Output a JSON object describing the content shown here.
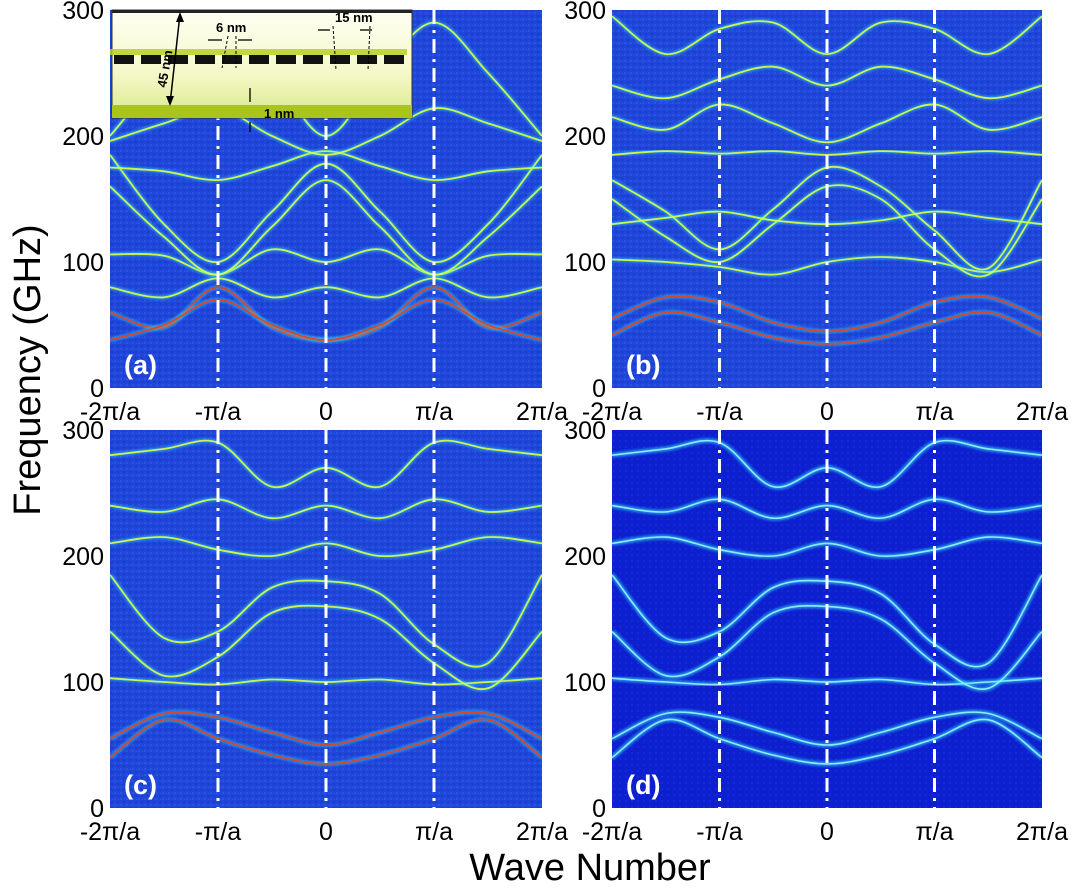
{
  "figure": {
    "xlabel": "Wave Number",
    "ylabel": "Frequency (GHz)"
  },
  "colors": {
    "background": "#1e44d8",
    "band_core": "#e0ff40",
    "band_glow": "#35e6ff",
    "band_hot": "#e8401a",
    "panel_d_background": "#0d1fcf",
    "marker_lines": "#ffffff"
  },
  "inset": {
    "labels": [
      "45 nm",
      "6 nm",
      "15 nm",
      "1 nm"
    ]
  },
  "chart_data": [
    {
      "type": "heatmap",
      "panel": "(a)",
      "x_ticks": [
        "-2π/a",
        "-π/a",
        "0",
        "π/a",
        "2π/a"
      ],
      "y_ticks": [
        "0",
        "100",
        "200",
        "300"
      ],
      "xlim": [
        -2,
        2
      ],
      "ylim": [
        0,
        300
      ],
      "x_unit_note": "π/a",
      "marker_lines_at": [
        -1,
        0,
        1
      ],
      "bands": [
        {
          "x": [
            -2,
            -1.5,
            -1,
            -0.5,
            0,
            0.5,
            1,
            1.5,
            2
          ],
          "y": [
            60,
            48,
            80,
            48,
            38,
            48,
            80,
            48,
            60
          ]
        },
        {
          "x": [
            -2,
            -1.5,
            -1,
            -0.5,
            0,
            0.5,
            1,
            1.5,
            2
          ],
          "y": [
            38,
            50,
            70,
            50,
            38,
            50,
            70,
            50,
            38
          ]
        },
        {
          "x": [
            -2,
            -1.5,
            -1,
            -0.5,
            0,
            0.5,
            1,
            1.5,
            2
          ],
          "y": [
            80,
            72,
            87,
            72,
            80,
            72,
            87,
            72,
            80
          ]
        },
        {
          "x": [
            -2,
            -1.5,
            -1,
            -0.5,
            0,
            0.5,
            1,
            1.5,
            2
          ],
          "y": [
            106,
            105,
            90,
            110,
            100,
            110,
            90,
            105,
            106
          ]
        },
        {
          "x": [
            -2,
            -1.5,
            -1,
            -0.5,
            0,
            0.5,
            1,
            1.5,
            2
          ],
          "y": [
            160,
            120,
            90,
            128,
            165,
            128,
            90,
            120,
            160
          ]
        },
        {
          "x": [
            -2,
            -1.5,
            -1,
            -0.5,
            0,
            0.5,
            1,
            1.5,
            2
          ],
          "y": [
            185,
            130,
            100,
            140,
            178,
            140,
            100,
            130,
            185
          ]
        },
        {
          "x": [
            -2,
            -1.5,
            -1,
            -0.5,
            0,
            0.5,
            1,
            1.5,
            2
          ],
          "y": [
            175,
            172,
            165,
            176,
            188,
            176,
            165,
            172,
            175
          ]
        },
        {
          "x": [
            -2,
            -1.5,
            -1,
            -0.5,
            0,
            0.5,
            1,
            1.5,
            2
          ],
          "y": [
            196,
            210,
            222,
            200,
            185,
            200,
            222,
            210,
            196
          ]
        },
        {
          "x": [
            -2,
            -1.5,
            -1,
            -0.5,
            0,
            0.5,
            1,
            1.5,
            2
          ],
          "y": [
            200,
            250,
            290,
            250,
            200,
            250,
            290,
            250,
            200
          ]
        }
      ]
    },
    {
      "type": "heatmap",
      "panel": "(b)",
      "x_ticks": [
        "-2π/a",
        "-π/a",
        "0",
        "π/a",
        "2π/a"
      ],
      "y_ticks": [
        "0",
        "100",
        "200",
        "300"
      ],
      "xlim": [
        -2,
        2
      ],
      "ylim": [
        0,
        300
      ],
      "marker_lines_at": [
        -1,
        0,
        1
      ],
      "bands": [
        {
          "x": [
            -2,
            -1.5,
            -1,
            -0.5,
            0,
            0.5,
            1,
            1.5,
            2
          ],
          "y": [
            42,
            60,
            52,
            40,
            35,
            40,
            52,
            60,
            42
          ]
        },
        {
          "x": [
            -2,
            -1.5,
            -1,
            -0.5,
            0,
            0.5,
            1,
            1.5,
            2
          ],
          "y": [
            55,
            72,
            68,
            52,
            45,
            52,
            68,
            72,
            55
          ]
        },
        {
          "x": [
            -2,
            -1.5,
            -1,
            -0.5,
            0,
            0.5,
            1,
            1.5,
            2
          ],
          "y": [
            102,
            100,
            96,
            90,
            100,
            104,
            100,
            92,
            102
          ]
        },
        {
          "x": [
            -2,
            -1.5,
            -1,
            -0.5,
            0,
            0.5,
            1,
            1.5,
            2
          ],
          "y": [
            150,
            120,
            100,
            130,
            160,
            150,
            110,
            90,
            150
          ]
        },
        {
          "x": [
            -2,
            -1.5,
            -1,
            -0.5,
            0,
            0.5,
            1,
            1.5,
            2
          ],
          "y": [
            165,
            140,
            110,
            142,
            175,
            160,
            125,
            95,
            165
          ]
        },
        {
          "x": [
            -2,
            -1.5,
            -1,
            -0.5,
            0,
            0.5,
            1,
            1.5,
            2
          ],
          "y": [
            130,
            135,
            140,
            133,
            130,
            133,
            140,
            135,
            130
          ]
        },
        {
          "x": [
            -2,
            -1.5,
            -1,
            -0.5,
            0,
            0.5,
            1,
            1.5,
            2
          ],
          "y": [
            185,
            188,
            186,
            188,
            185,
            188,
            186,
            188,
            185
          ]
        },
        {
          "x": [
            -2,
            -1.5,
            -1,
            -0.5,
            0,
            0.5,
            1,
            1.5,
            2
          ],
          "y": [
            215,
            205,
            225,
            210,
            195,
            210,
            225,
            205,
            215
          ]
        },
        {
          "x": [
            -2,
            -1.5,
            -1,
            -0.5,
            0,
            0.5,
            1,
            1.5,
            2
          ],
          "y": [
            240,
            230,
            245,
            255,
            240,
            255,
            245,
            230,
            240
          ]
        },
        {
          "x": [
            -2,
            -1.5,
            -1,
            -0.5,
            0,
            0.5,
            1,
            1.5,
            2
          ],
          "y": [
            295,
            265,
            285,
            290,
            265,
            290,
            285,
            265,
            295
          ]
        }
      ]
    },
    {
      "type": "heatmap",
      "panel": "(c)",
      "x_ticks": [
        "-2π/a",
        "-π/a",
        "0",
        "π/a",
        "2π/a"
      ],
      "y_ticks": [
        "0",
        "100",
        "200",
        "300"
      ],
      "xlim": [
        -2,
        2
      ],
      "ylim": [
        0,
        300
      ],
      "marker_lines_at": [
        -1,
        0,
        1
      ],
      "bands": [
        {
          "x": [
            -2,
            -1.5,
            -1,
            -0.5,
            0,
            0.5,
            1,
            1.5,
            2
          ],
          "y": [
            40,
            70,
            55,
            42,
            35,
            42,
            55,
            70,
            40
          ]
        },
        {
          "x": [
            -2,
            -1.5,
            -1,
            -0.5,
            0,
            0.5,
            1,
            1.5,
            2
          ],
          "y": [
            55,
            75,
            72,
            60,
            50,
            60,
            72,
            75,
            55
          ]
        },
        {
          "x": [
            -2,
            -1.5,
            -1,
            -0.5,
            0,
            0.5,
            1,
            1.5,
            2
          ],
          "y": [
            103,
            100,
            98,
            102,
            100,
            102,
            98,
            100,
            103
          ]
        },
        {
          "x": [
            -2,
            -1.5,
            -1,
            -0.5,
            0,
            0.5,
            1,
            1.5,
            2
          ],
          "y": [
            140,
            105,
            120,
            155,
            160,
            150,
            115,
            95,
            140
          ]
        },
        {
          "x": [
            -2,
            -1.5,
            -1,
            -0.5,
            0,
            0.5,
            1,
            1.5,
            2
          ],
          "y": [
            185,
            135,
            140,
            175,
            180,
            170,
            130,
            115,
            185
          ]
        },
        {
          "x": [
            -2,
            -1.5,
            -1,
            -0.5,
            0,
            0.5,
            1,
            1.5,
            2
          ],
          "y": [
            210,
            215,
            205,
            200,
            210,
            200,
            205,
            215,
            210
          ]
        },
        {
          "x": [
            -2,
            -1.5,
            -1,
            -0.5,
            0,
            0.5,
            1,
            1.5,
            2
          ],
          "y": [
            240,
            235,
            245,
            230,
            240,
            230,
            245,
            235,
            240
          ]
        },
        {
          "x": [
            -2,
            -1.5,
            -1,
            -0.5,
            0,
            0.5,
            1,
            1.5,
            2
          ],
          "y": [
            280,
            285,
            290,
            255,
            270,
            255,
            290,
            285,
            280
          ]
        }
      ]
    },
    {
      "type": "heatmap",
      "panel": "(d)",
      "x_ticks": [
        "-2π/a",
        "-π/a",
        "0",
        "π/a",
        "2π/a"
      ],
      "y_ticks": [
        "0",
        "100",
        "200",
        "300"
      ],
      "xlim": [
        -2,
        2
      ],
      "ylim": [
        0,
        300
      ],
      "marker_lines_at": [
        -1,
        0,
        1
      ],
      "bands": [
        {
          "x": [
            -2,
            -1.5,
            -1,
            -0.5,
            0,
            0.5,
            1,
            1.5,
            2
          ],
          "y": [
            40,
            70,
            55,
            42,
            35,
            42,
            55,
            70,
            40
          ]
        },
        {
          "x": [
            -2,
            -1.5,
            -1,
            -0.5,
            0,
            0.5,
            1,
            1.5,
            2
          ],
          "y": [
            55,
            75,
            72,
            60,
            50,
            60,
            72,
            75,
            55
          ]
        },
        {
          "x": [
            -2,
            -1.5,
            -1,
            -0.5,
            0,
            0.5,
            1,
            1.5,
            2
          ],
          "y": [
            103,
            100,
            98,
            102,
            100,
            102,
            98,
            100,
            103
          ]
        },
        {
          "x": [
            -2,
            -1.5,
            -1,
            -0.5,
            0,
            0.5,
            1,
            1.5,
            2
          ],
          "y": [
            140,
            105,
            120,
            155,
            160,
            150,
            115,
            95,
            140
          ]
        },
        {
          "x": [
            -2,
            -1.5,
            -1,
            -0.5,
            0,
            0.5,
            1,
            1.5,
            2
          ],
          "y": [
            185,
            135,
            140,
            175,
            180,
            170,
            130,
            115,
            185
          ]
        },
        {
          "x": [
            -2,
            -1.5,
            -1,
            -0.5,
            0,
            0.5,
            1,
            1.5,
            2
          ],
          "y": [
            210,
            215,
            205,
            200,
            210,
            200,
            205,
            215,
            210
          ]
        },
        {
          "x": [
            -2,
            -1.5,
            -1,
            -0.5,
            0,
            0.5,
            1,
            1.5,
            2
          ],
          "y": [
            240,
            235,
            245,
            230,
            240,
            230,
            245,
            235,
            240
          ]
        },
        {
          "x": [
            -2,
            -1.5,
            -1,
            -0.5,
            0,
            0.5,
            1,
            1.5,
            2
          ],
          "y": [
            280,
            285,
            290,
            255,
            270,
            255,
            290,
            285,
            280
          ]
        }
      ]
    }
  ]
}
